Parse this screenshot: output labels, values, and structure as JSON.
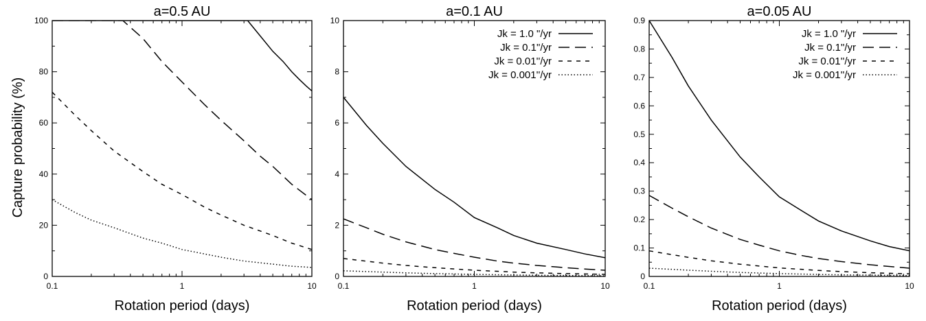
{
  "figure": {
    "ylabel": "Capture probability (%)"
  },
  "chart_data": [
    {
      "type": "line",
      "title": "a=0.5 AU",
      "xlabel": "Rotation period (days)",
      "ylabel": "Capture probability (%)",
      "xscale": "log",
      "xlim": [
        0.1,
        10
      ],
      "ylim": [
        0,
        100
      ],
      "xticks": [
        "0.1",
        "1",
        "10"
      ],
      "yticks": [
        "0",
        "20",
        "40",
        "60",
        "80",
        "100"
      ],
      "legend": "none",
      "grid": false,
      "series": [
        {
          "style": "solid",
          "x": [
            0.1,
            0.2,
            0.3,
            1,
            3,
            3.2,
            4,
            5,
            6,
            7,
            8,
            9,
            10
          ],
          "y": [
            100,
            100,
            100,
            100,
            100,
            100,
            94,
            88,
            84,
            80,
            77,
            74.5,
            72.5
          ]
        },
        {
          "style": "dash",
          "x": [
            0.1,
            0.2,
            0.3,
            0.35,
            0.5,
            0.7,
            1,
            1.5,
            2,
            3,
            4,
            5,
            7,
            10
          ],
          "y": [
            100,
            100,
            100,
            100,
            93,
            84,
            76,
            67,
            61,
            53,
            47,
            43,
            36,
            30
          ]
        },
        {
          "style": "short-dash",
          "x": [
            0.1,
            0.15,
            0.2,
            0.3,
            0.5,
            0.7,
            1,
            1.5,
            2,
            3,
            5,
            7,
            10
          ],
          "y": [
            72,
            63,
            57,
            49,
            41,
            36,
            32,
            27,
            24,
            20,
            16,
            13,
            10.5
          ]
        },
        {
          "style": "dot",
          "x": [
            0.1,
            0.15,
            0.2,
            0.3,
            0.5,
            0.7,
            1,
            2,
            3,
            5,
            7,
            10
          ],
          "y": [
            30,
            25,
            22,
            19,
            15,
            13,
            10.5,
            7.5,
            6,
            4.8,
            4,
            3.5
          ]
        }
      ]
    },
    {
      "type": "line",
      "title": "a=0.1 AU",
      "xlabel": "Rotation period (days)",
      "xscale": "log",
      "xlim": [
        0.1,
        10
      ],
      "ylim": [
        0,
        10
      ],
      "xticks": [
        "0.1",
        "1",
        "10"
      ],
      "yticks": [
        "0",
        "2",
        "4",
        "6",
        "8",
        "10"
      ],
      "legend": "top-right",
      "grid": false,
      "series": [
        {
          "name": "Jk = 1.0 \"/yr",
          "style": "solid",
          "x": [
            0.1,
            0.15,
            0.2,
            0.3,
            0.5,
            0.7,
            1,
            1.5,
            2,
            3,
            5,
            7,
            10
          ],
          "y": [
            7,
            5.9,
            5.2,
            4.3,
            3.4,
            2.9,
            2.3,
            1.9,
            1.6,
            1.3,
            1.05,
            0.88,
            0.73
          ]
        },
        {
          "name": "Jk = 0.1\"/yr",
          "style": "dash",
          "x": [
            0.1,
            0.15,
            0.2,
            0.3,
            0.5,
            0.7,
            1,
            1.5,
            2,
            3,
            5,
            7,
            10
          ],
          "y": [
            2.25,
            1.9,
            1.65,
            1.35,
            1.05,
            0.9,
            0.75,
            0.6,
            0.52,
            0.43,
            0.34,
            0.29,
            0.24
          ]
        },
        {
          "name": "Jk = 0.01''/yr",
          "style": "short-dash",
          "x": [
            0.1,
            0.2,
            0.3,
            0.5,
            1,
            2,
            3,
            5,
            10
          ],
          "y": [
            0.7,
            0.52,
            0.43,
            0.34,
            0.24,
            0.17,
            0.14,
            0.11,
            0.08
          ]
        },
        {
          "name": "Jk = 0.001''/yr",
          "style": "dot",
          "x": [
            0.1,
            0.2,
            0.3,
            0.5,
            1,
            2,
            3,
            5,
            10
          ],
          "y": [
            0.22,
            0.17,
            0.14,
            0.11,
            0.08,
            0.055,
            0.045,
            0.035,
            0.025
          ]
        }
      ]
    },
    {
      "type": "line",
      "title": "a=0.05 AU",
      "xlabel": "Rotation period (days)",
      "xscale": "log",
      "xlim": [
        0.1,
        10
      ],
      "ylim": [
        0,
        0.9
      ],
      "xticks": [
        "0.1",
        "1",
        "10"
      ],
      "yticks": [
        "0",
        "0.1",
        "0.2",
        "0.3",
        "0.4",
        "0.5",
        "0.6",
        "0.7",
        "0.8",
        "0.9"
      ],
      "legend": "top-right",
      "grid": false,
      "series": [
        {
          "name": "Jk = 1.0 \"/yr",
          "style": "solid",
          "x": [
            0.1,
            0.15,
            0.2,
            0.3,
            0.5,
            0.7,
            1,
            1.5,
            2,
            3,
            5,
            7,
            10
          ],
          "y": [
            0.9,
            0.77,
            0.67,
            0.55,
            0.42,
            0.35,
            0.28,
            0.23,
            0.195,
            0.16,
            0.125,
            0.105,
            0.09
          ]
        },
        {
          "name": "Jk = 0.1\"/yr",
          "style": "dash",
          "x": [
            0.1,
            0.15,
            0.2,
            0.3,
            0.5,
            0.7,
            1,
            1.5,
            2,
            3,
            5,
            7,
            10
          ],
          "y": [
            0.285,
            0.24,
            0.21,
            0.17,
            0.13,
            0.11,
            0.09,
            0.073,
            0.063,
            0.052,
            0.041,
            0.035,
            0.029
          ]
        },
        {
          "name": "Jk = 0.01''/yr",
          "style": "short-dash",
          "x": [
            0.1,
            0.2,
            0.3,
            0.5,
            1,
            2,
            3,
            5,
            10
          ],
          "y": [
            0.09,
            0.067,
            0.055,
            0.043,
            0.03,
            0.021,
            0.017,
            0.013,
            0.009
          ]
        },
        {
          "name": "Jk = 0.001''/yr",
          "style": "dot",
          "x": [
            0.1,
            0.2,
            0.3,
            0.5,
            1,
            2,
            3,
            5,
            10
          ],
          "y": [
            0.029,
            0.022,
            0.018,
            0.014,
            0.01,
            0.007,
            0.0055,
            0.0045,
            0.003
          ]
        }
      ]
    }
  ]
}
